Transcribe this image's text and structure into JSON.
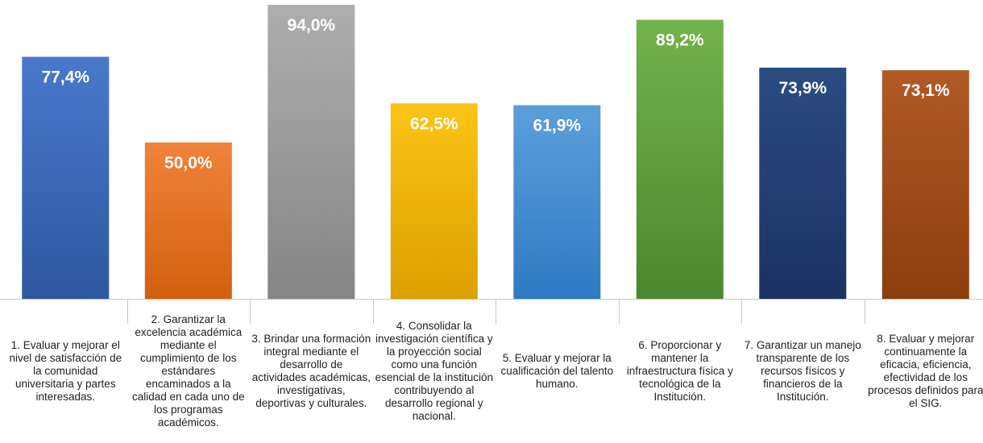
{
  "chart_data": {
    "type": "bar",
    "title": "",
    "xlabel": "",
    "ylabel": "",
    "ylim": [
      0,
      100
    ],
    "grid": false,
    "legend": "none",
    "categories": [
      "1. Evaluar y mejorar el nivel de satisfacción de la comunidad universitaria y partes interesadas.",
      "2. Garantizar la excelencia académica mediante el cumplimiento de los estándares encaminados a la calidad en cada uno de los programas académicos.",
      "3. Brindar una formación integral mediante el desarrollo de actividades académicas, investigativas, deportivas y culturales.",
      "4. Consolidar la investigación científica y la proyección social como una función esencial de la institución contribuyendo al desarrollo regional y nacional.",
      "5. Evaluar y mejorar la cualificación del talento humano.",
      "6. Proporcionar y mantener la infraestructura física y tecnológica de la Institución.",
      "7. Garantizar un manejo transparente de los recursos físicos y financieros de la Institución.",
      "8. Evaluar y mejorar continuamente la eficacia, eficiencia, efectividad de los procesos definidos para el SIG."
    ],
    "values": [
      77.4,
      50.0,
      94.0,
      62.5,
      61.9,
      89.2,
      73.9,
      73.1
    ],
    "data_labels": [
      "77,4%",
      "50,0%",
      "94,0%",
      "62,5%",
      "61,9%",
      "89,2%",
      "73,9%",
      "73,1%"
    ],
    "colors": [
      [
        "#4a78cc",
        "#2d579f"
      ],
      [
        "#f0823a",
        "#d2600f"
      ],
      [
        "#aeaeae",
        "#858585"
      ],
      [
        "#fcc416",
        "#dca000"
      ],
      [
        "#5c9fda",
        "#2f7ac4"
      ],
      [
        "#74b24c",
        "#4f8630"
      ],
      [
        "#2b4b82",
        "#1b3263"
      ],
      [
        "#b05a24",
        "#8c3e0e"
      ]
    ],
    "label_color": "#ffffff"
  }
}
